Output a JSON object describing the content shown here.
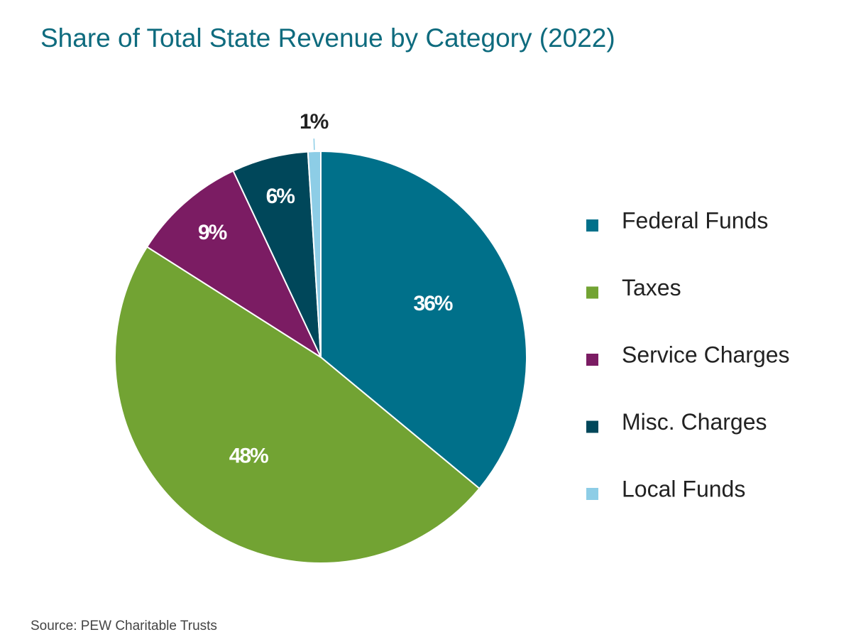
{
  "chart_data": {
    "type": "pie",
    "title": "Share of Total State Revenue by Category (2022)",
    "categories": [
      "Federal Funds",
      "Taxes",
      "Service Charges",
      "Misc. Charges",
      "Local Funds"
    ],
    "values": [
      36,
      48,
      9,
      6,
      1
    ],
    "value_labels": [
      "36%",
      "48%",
      "9%",
      "6%",
      "1%"
    ],
    "colors": [
      "#00708a",
      "#72a333",
      "#7b1c63",
      "#00475a",
      "#8dcde6"
    ],
    "source": "Source: PEW Charitable Trusts"
  }
}
